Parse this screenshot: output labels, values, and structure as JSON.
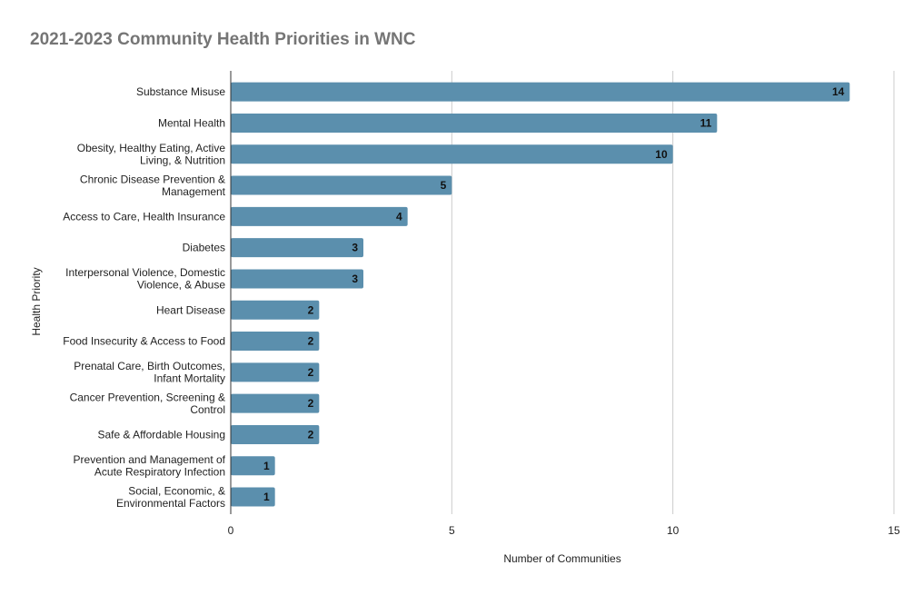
{
  "chart_data": {
    "type": "bar",
    "orientation": "horizontal",
    "title": "2021-2023 Community Health Priorities in WNC",
    "xlabel": "Number of Communities",
    "ylabel": "Health Priority",
    "xlim": [
      0,
      15
    ],
    "xticks": [
      0,
      5,
      10,
      15
    ],
    "grid": true,
    "legend": "none",
    "bar_color": "#5b8fad",
    "categories": [
      [
        "Substance Misuse"
      ],
      [
        "Mental Health"
      ],
      [
        "Obesity, Healthy Eating, Active",
        "Living, & Nutrition"
      ],
      [
        "Chronic Disease Prevention &",
        "Management"
      ],
      [
        "Access to Care, Health Insurance"
      ],
      [
        "Diabetes"
      ],
      [
        "Interpersonal Violence, Domestic",
        "Violence, & Abuse"
      ],
      [
        "Heart Disease"
      ],
      [
        "Food Insecurity & Access to Food"
      ],
      [
        "Prenatal Care, Birth Outcomes,",
        "Infant Mortality"
      ],
      [
        "Cancer Prevention, Screening &",
        "Control"
      ],
      [
        "Safe & Affordable Housing"
      ],
      [
        "Prevention and Management of",
        "Acute Respiratory Infection"
      ],
      [
        "Social, Economic, &",
        "Environmental Factors"
      ]
    ],
    "values": [
      14,
      11,
      10,
      5,
      4,
      3,
      3,
      2,
      2,
      2,
      2,
      2,
      1,
      1
    ]
  }
}
